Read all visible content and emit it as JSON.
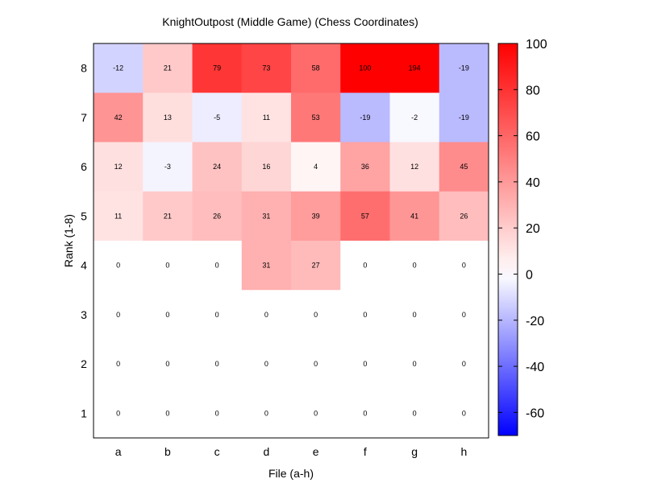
{
  "chart_data": {
    "type": "heatmap",
    "title": "KnightOutpost (Middle Game) (Chess Coordinates)",
    "xlabel": "File (a-h)",
    "ylabel": "Rank (1-8)",
    "x_categories": [
      "a",
      "b",
      "c",
      "d",
      "e",
      "f",
      "g",
      "h"
    ],
    "y_categories": [
      "1",
      "2",
      "3",
      "4",
      "5",
      "6",
      "7",
      "8"
    ],
    "values_by_rank_top_to_bottom": [
      [
        -12,
        21,
        79,
        73,
        58,
        100,
        194,
        -19
      ],
      [
        42,
        13,
        -5,
        11,
        53,
        -19,
        -2,
        -19
      ],
      [
        12,
        -3,
        24,
        16,
        4,
        36,
        12,
        45
      ],
      [
        11,
        21,
        26,
        31,
        39,
        57,
        41,
        26
      ],
      [
        0,
        0,
        0,
        31,
        27,
        0,
        0,
        0
      ],
      [
        0,
        0,
        0,
        0,
        0,
        0,
        0,
        0
      ],
      [
        0,
        0,
        0,
        0,
        0,
        0,
        0,
        0
      ],
      [
        0,
        0,
        0,
        0,
        0,
        0,
        0,
        0
      ]
    ],
    "colorbar": {
      "min": -70,
      "max": 100,
      "ticks": [
        "100",
        "80",
        "60",
        "40",
        "20",
        "0",
        "-20",
        "-40",
        "-60"
      ],
      "colors": {
        "low": "#0000ff",
        "mid": "#ffffff",
        "high": "#ff0000"
      }
    },
    "grid": false,
    "legend": "colorbar-right"
  }
}
